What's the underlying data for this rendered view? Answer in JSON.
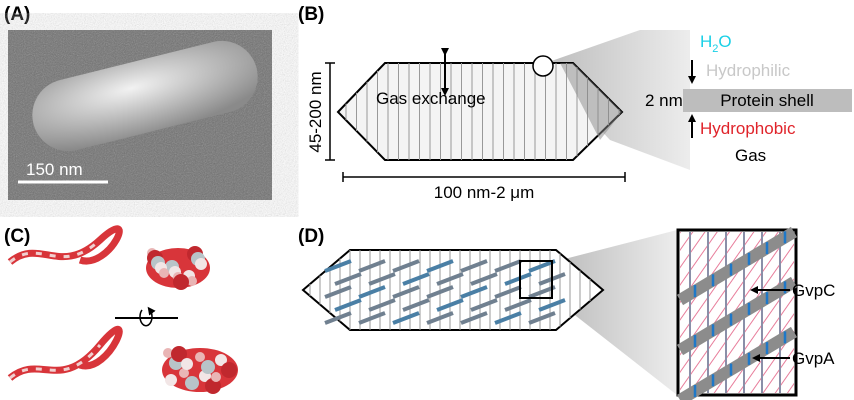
{
  "panels": [
    {
      "label": "(A)",
      "scale_bar": "150 nm"
    },
    {
      "label": "(B)",
      "height_label": "45-200 nm",
      "center_label": "Gas exchange",
      "length_label": "100 nm-2 μm",
      "water": [
        "H",
        "2",
        "O"
      ],
      "hydrophilic": "Hydrophilic",
      "thickness": "2 nm",
      "shell": "Protein shell",
      "hydrophobic": "Hydrophobic",
      "gas": "Gas"
    },
    {
      "label": "(C)"
    },
    {
      "label": "(D)",
      "gvpc": "GvpC",
      "gvpa": "GvpA"
    }
  ]
}
